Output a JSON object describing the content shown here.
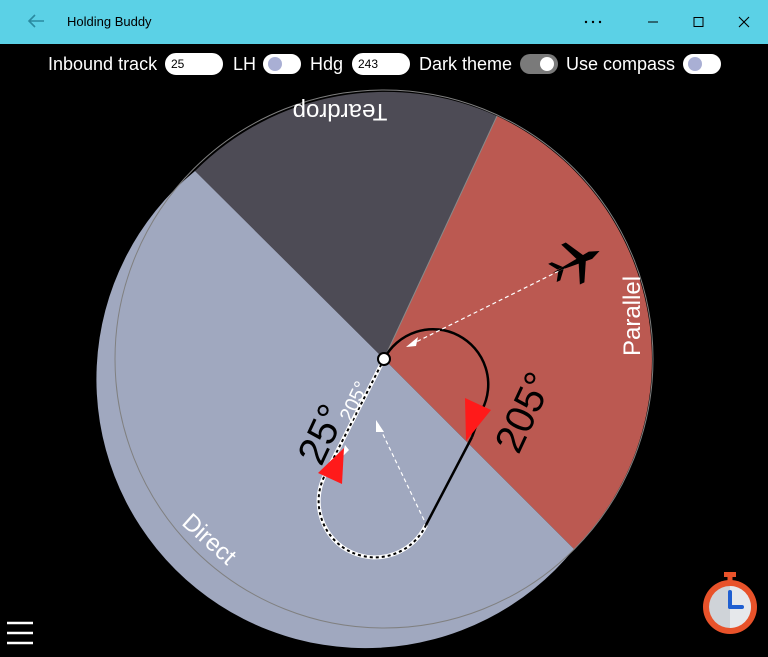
{
  "app": {
    "title": "Holding Buddy"
  },
  "toolbar": {
    "inbound_track_label": "Inbound track",
    "inbound_track_value": "25",
    "lh_label": "LH",
    "lh_on": false,
    "hdg_label": "Hdg",
    "hdg_value": "243",
    "dark_theme_label": "Dark theme",
    "dark_theme_on": true,
    "use_compass_label": "Use compass",
    "use_compass_on": false
  },
  "sectors": {
    "teardrop_label": "Teardrop",
    "parallel_label": "Parallel",
    "direct_label": "Direct",
    "colors": {
      "teardrop": "#4d4b55",
      "parallel": "#bb5951",
      "direct": "#a0a8bf"
    }
  },
  "pattern": {
    "inbound_label": "25°",
    "outbound_label": "205°",
    "entry_label": "205°"
  },
  "icons": {
    "back": "back-arrow-icon",
    "more": "more-icon",
    "minimize": "minimize-icon",
    "maximize": "maximize-icon",
    "close": "close-icon",
    "aircraft": "airplane-icon",
    "menu": "hamburger-menu-icon",
    "timer": "stopwatch-icon"
  }
}
